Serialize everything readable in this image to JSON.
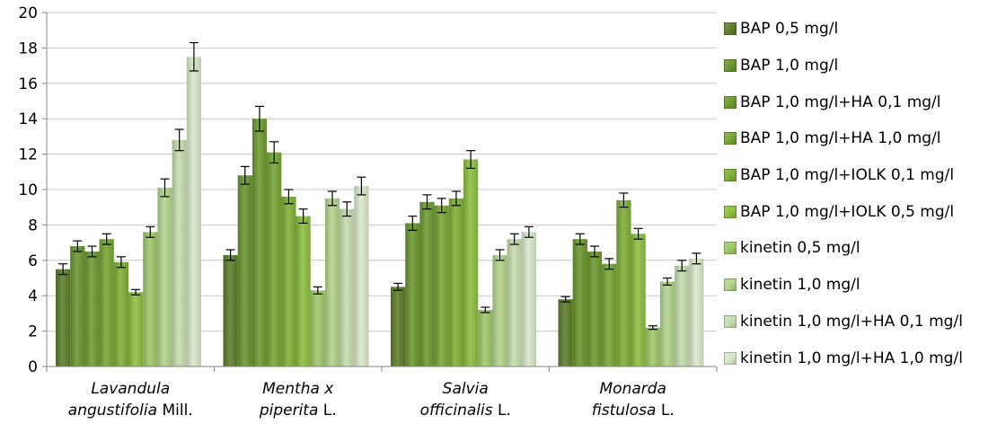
{
  "chart_data": {
    "type": "bar",
    "ylim": [
      0,
      20
    ],
    "yticks": [
      0,
      2,
      4,
      6,
      8,
      10,
      12,
      14,
      16,
      18,
      20
    ],
    "grid": true,
    "legend_position": "right",
    "categories": [
      {
        "italic": "Lavandula",
        "line2_italic": "angustifolia",
        "line2_suffix": " Mill."
      },
      {
        "italic": "Mentha x",
        "line2_italic": "piperita",
        "line2_suffix": " L."
      },
      {
        "italic": "Salvia",
        "line2_italic": "officinalis",
        "line2_suffix": " L."
      },
      {
        "italic": "Monarda",
        "line2_italic": "fistulosa",
        "line2_suffix": " L."
      }
    ],
    "series": [
      {
        "name": "BAP 0,5 mg/l",
        "color": "#5d7d2a",
        "values": [
          5.5,
          6.3,
          4.5,
          3.8
        ],
        "errors": [
          0.3,
          0.3,
          0.2,
          0.15
        ]
      },
      {
        "name": "BAP 1,0 mg/l",
        "color": "#6a962e",
        "values": [
          6.8,
          10.8,
          8.1,
          7.2
        ],
        "errors": [
          0.3,
          0.5,
          0.4,
          0.3
        ]
      },
      {
        "name": "BAP 1,0 mg/l+HA 0,1 mg/l",
        "color": "#6d9a30",
        "values": [
          6.5,
          14.0,
          9.3,
          6.5
        ],
        "errors": [
          0.3,
          0.7,
          0.4,
          0.3
        ]
      },
      {
        "name": "BAP 1,0 mg/l+HA 1,0 mg/l",
        "color": "#76a634",
        "values": [
          7.2,
          12.1,
          9.1,
          5.8
        ],
        "errors": [
          0.3,
          0.6,
          0.4,
          0.3
        ]
      },
      {
        "name": "BAP 1,0 mg/l+IOLK 0,1 mg/l",
        "color": "#7eb038",
        "values": [
          5.9,
          9.6,
          9.5,
          9.4
        ],
        "errors": [
          0.3,
          0.4,
          0.4,
          0.4
        ]
      },
      {
        "name": "BAP 1,0 mg/l+IOLK 0,5 mg/l",
        "color": "#8cbf40",
        "values": [
          4.2,
          8.5,
          11.7,
          7.5
        ],
        "errors": [
          0.15,
          0.4,
          0.5,
          0.3
        ]
      },
      {
        "name": "kinetin 0,5 mg/l",
        "color": "#9fc86a",
        "values": [
          7.6,
          4.3,
          3.2,
          2.2
        ],
        "errors": [
          0.3,
          0.2,
          0.15,
          0.1
        ]
      },
      {
        "name": "kinetin 1,0 mg/l",
        "color": "#b3d48c",
        "values": [
          10.1,
          9.5,
          6.3,
          4.8
        ],
        "errors": [
          0.5,
          0.4,
          0.3,
          0.2
        ]
      },
      {
        "name": "kinetin 1,0 mg/l+HA 0,1 mg/l",
        "color": "#c6ddb0",
        "values": [
          12.8,
          8.9,
          7.2,
          5.7
        ],
        "errors": [
          0.6,
          0.4,
          0.3,
          0.3
        ]
      },
      {
        "name": "kinetin 1,0 mg/l+HA 1,0 mg/l",
        "color": "#d9e8c9",
        "values": [
          17.5,
          10.2,
          7.6,
          6.1
        ],
        "errors": [
          0.8,
          0.5,
          0.3,
          0.3
        ]
      }
    ]
  }
}
